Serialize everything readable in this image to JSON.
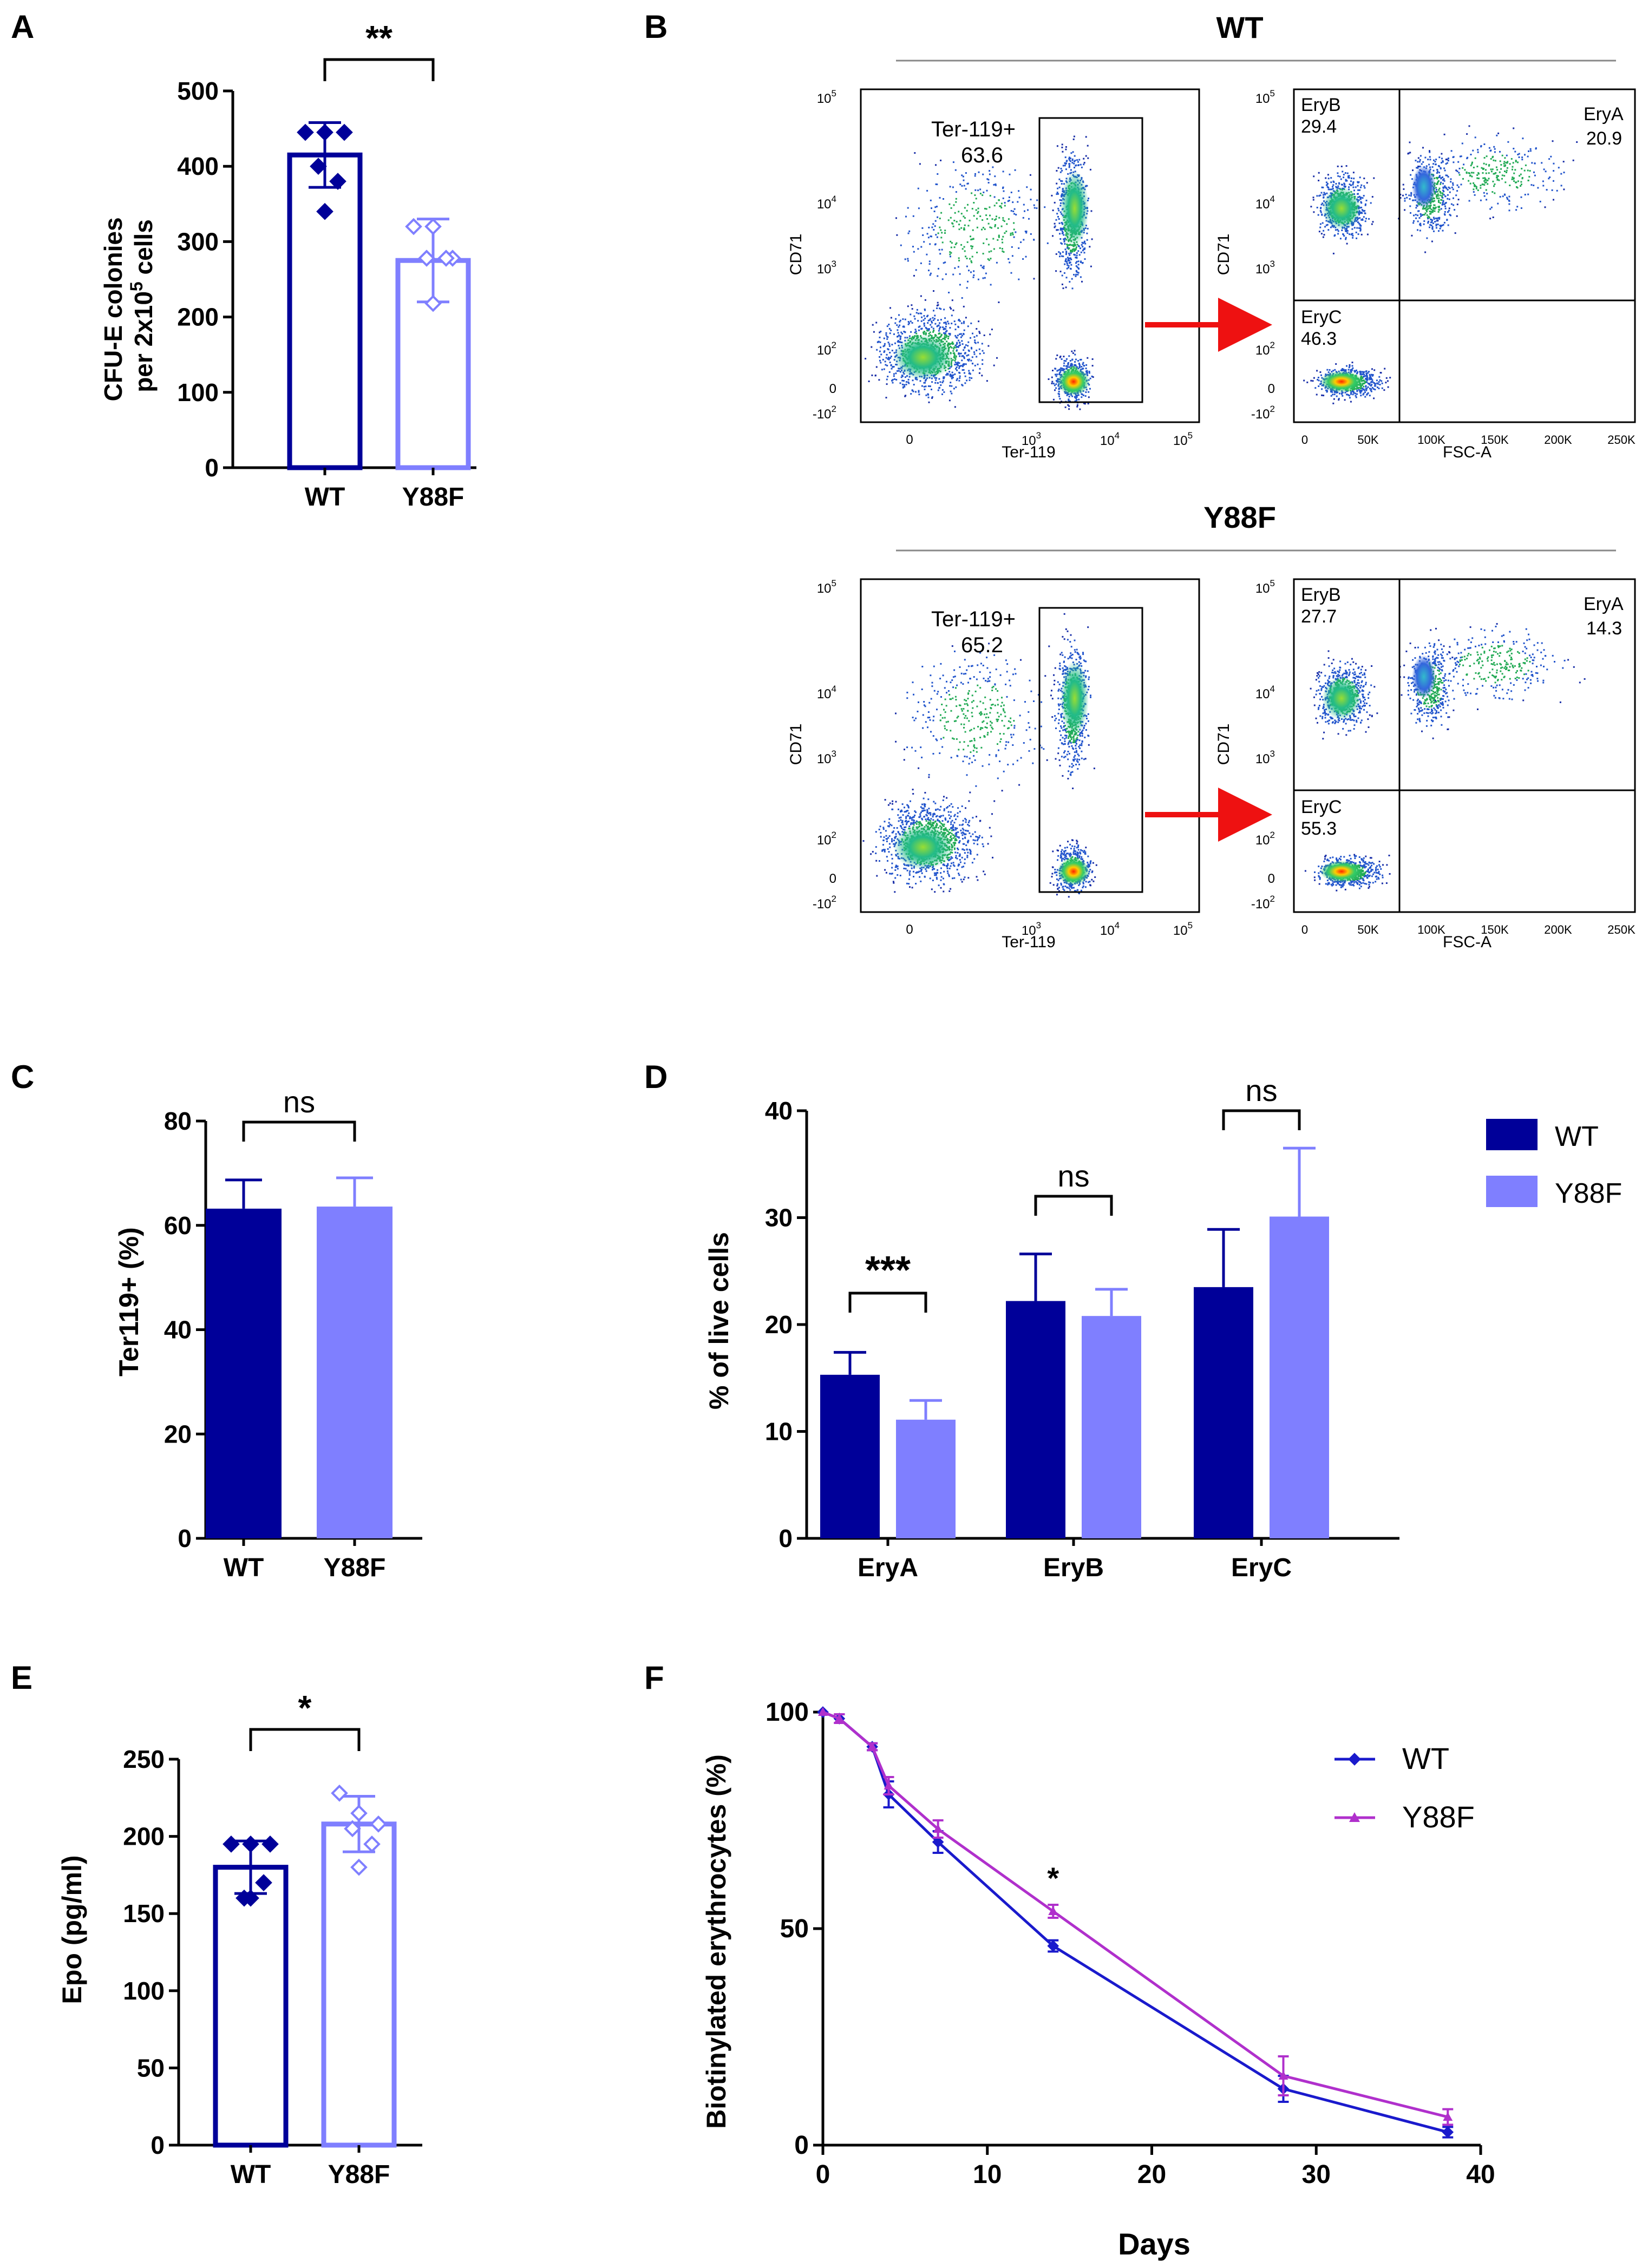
{
  "colors": {
    "wt": "#000099",
    "y88f": "#7f7fff",
    "wt_line": "#1a1acc",
    "y88f_line": "#b030cc",
    "arrow": "#ee1111"
  },
  "chart_data": [
    {
      "id": "A",
      "panel_label": "A",
      "type": "bar",
      "categories": [
        "WT",
        "Y88F"
      ],
      "values": [
        415,
        275
      ],
      "errors": [
        43,
        55
      ],
      "points": [
        [
          445,
          445,
          445,
          400,
          380,
          340
        ],
        [
          320,
          320,
          278,
          278,
          278,
          218
        ]
      ],
      "ylabel_lines": [
        "CFU-E colonies",
        "per 2x10",
        "5",
        " cells"
      ],
      "ylim": [
        0,
        500
      ],
      "yticks": [
        "0",
        "100",
        "200",
        "300",
        "400",
        "500"
      ],
      "significance": "**"
    },
    {
      "id": "B",
      "panel_label": "B",
      "type": "scatter",
      "description_note": "flow cytometry density plots",
      "groups": [
        {
          "name": "WT",
          "gate_label": "Ter-119+",
          "gate_value": "63.6",
          "eryB_label": "EryB",
          "eryB": "29.4",
          "eryA_label": "EryA",
          "eryA": "20.9",
          "eryC_label": "EryC",
          "eryC": "46.3"
        },
        {
          "name": "Y88F",
          "gate_label": "Ter-119+",
          "gate_value": "65.2",
          "eryB_label": "EryB",
          "eryB": "27.7",
          "eryA_label": "EryA",
          "eryA": "14.3",
          "eryC_label": "EryC",
          "eryC": "55.3"
        }
      ],
      "left_xlabel": "Ter-119",
      "left_ylabel": "CD71",
      "right_xlabel": "FSC-A",
      "right_ylabel": "CD71",
      "left_xticks": [
        "0",
        "10",
        "3",
        "10",
        "4",
        "10",
        "5"
      ],
      "left_yticks": [
        "10",
        "5",
        "10",
        "4",
        "10",
        "3",
        "10",
        "2",
        "0",
        "-10",
        "2"
      ],
      "right_xticks": [
        "0",
        "50K",
        "100K",
        "150K",
        "200K",
        "250K"
      ]
    },
    {
      "id": "C",
      "panel_label": "C",
      "type": "bar",
      "categories": [
        "WT",
        "Y88F"
      ],
      "values": [
        63.2,
        63.6
      ],
      "errors": [
        5.5,
        5.5
      ],
      "ylabel": "Ter119+ (%)",
      "ylim": [
        0,
        80
      ],
      "yticks": [
        "0",
        "20",
        "40",
        "60",
        "80"
      ],
      "significance": "ns"
    },
    {
      "id": "D",
      "panel_label": "D",
      "type": "bar",
      "categories": [
        "EryA",
        "EryB",
        "EryC"
      ],
      "series": [
        {
          "name": "WT",
          "values": [
            15.3,
            22.2,
            23.5
          ],
          "errors": [
            2.1,
            4.4,
            5.4
          ]
        },
        {
          "name": "Y88F",
          "values": [
            11.1,
            20.8,
            30.1
          ],
          "errors": [
            1.8,
            2.5,
            6.4
          ]
        }
      ],
      "significance": [
        "***",
        "ns",
        "ns"
      ],
      "ylabel": "% of live cells",
      "ylim": [
        0,
        40
      ],
      "yticks": [
        "0",
        "10",
        "20",
        "30",
        "40"
      ],
      "legend": [
        "WT",
        "Y88F"
      ]
    },
    {
      "id": "E",
      "panel_label": "E",
      "type": "bar",
      "categories": [
        "WT",
        "Y88F"
      ],
      "values": [
        180,
        208
      ],
      "errors": [
        17,
        18
      ],
      "points": [
        [
          195,
          195,
          195,
          160,
          170,
          160
        ],
        [
          228,
          215,
          208,
          205,
          195,
          180
        ]
      ],
      "ylabel": "Epo (pg/ml)",
      "ylim": [
        0,
        250
      ],
      "yticks": [
        "0",
        "50",
        "100",
        "150",
        "200",
        "250"
      ],
      "significance": "*"
    },
    {
      "id": "F",
      "panel_label": "F",
      "type": "line",
      "x": [
        0,
        1,
        3,
        4,
        7,
        14,
        28,
        38
      ],
      "series": [
        {
          "name": "WT",
          "values": [
            100,
            98.5,
            92,
            81,
            70,
            46,
            13,
            3
          ],
          "errors": [
            0,
            1,
            0.8,
            3,
            2.5,
            1.3,
            3,
            1.2
          ]
        },
        {
          "name": "Y88F",
          "values": [
            100,
            98.5,
            92,
            83,
            73,
            54,
            16,
            6.5
          ],
          "errors": [
            0,
            1,
            0.8,
            2,
            2,
            1.5,
            4.5,
            1.8
          ]
        }
      ],
      "annotations": [
        {
          "x": 14,
          "text": "*"
        }
      ],
      "xlabel": "Days",
      "ylabel": "Biotinylated erythrocytes (%)",
      "xlim": [
        0,
        40
      ],
      "ylim": [
        0,
        100
      ],
      "xticks": [
        "0",
        "10",
        "20",
        "30",
        "40"
      ],
      "yticks": [
        "0",
        "50",
        "100"
      ],
      "legend": [
        "WT",
        "Y88F"
      ]
    }
  ]
}
